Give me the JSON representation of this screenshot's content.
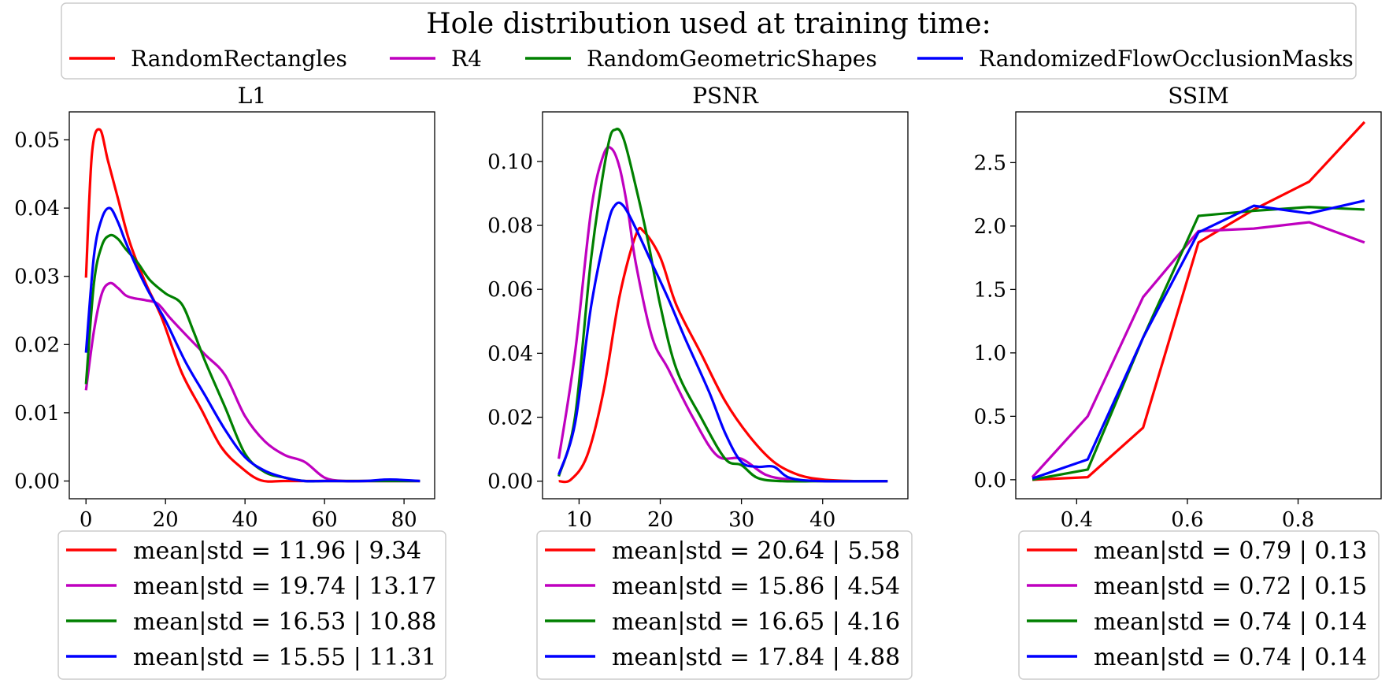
{
  "figure_title": "Hole distribution used at training time:",
  "colors": {
    "RandomRectangles": "#ff0000",
    "R4": "#bf00bf",
    "RandomGeometricShapes": "#008000",
    "RandomizedFlowOcclusionMasks": "#0000ff"
  },
  "top_legend": [
    "RandomRectangles",
    "R4",
    "RandomGeometricShapes",
    "RandomizedFlowOcclusionMasks"
  ],
  "chart_data": [
    {
      "type": "line",
      "title": "L1",
      "xlabel": "",
      "ylabel": "",
      "xlim": [
        -4.2,
        87.7
      ],
      "ylim": [
        -0.0026,
        0.0541
      ],
      "xticks": [
        0,
        20,
        40,
        60,
        80
      ],
      "xtick_labels": [
        "0",
        "20",
        "40",
        "60",
        "80"
      ],
      "yticks": [
        0,
        0.01,
        0.02,
        0.03,
        0.04,
        0.05
      ],
      "ytick_labels": [
        "0.00",
        "0.01",
        "0.02",
        "0.03",
        "0.04",
        "0.05"
      ],
      "smooth": true,
      "series": [
        {
          "name": "RandomRectangles",
          "x": [
            0,
            1.5,
            3.5,
            5.5,
            8,
            11,
            15,
            19,
            24,
            29,
            34,
            39,
            44,
            50,
            60,
            70,
            80,
            84
          ],
          "y": [
            0.0298,
            0.048,
            0.0515,
            0.047,
            0.0415,
            0.035,
            0.029,
            0.024,
            0.016,
            0.0105,
            0.005,
            0.002,
            0.0001,
            0,
            0,
            0,
            0,
            0
          ]
        },
        {
          "name": "R4",
          "x": [
            0,
            2,
            4,
            6,
            8,
            10,
            12,
            15,
            18,
            21,
            25,
            30,
            35,
            40,
            45,
            50,
            55,
            60,
            65,
            70,
            80,
            84
          ],
          "y": [
            0.0133,
            0.022,
            0.0275,
            0.029,
            0.0283,
            0.0272,
            0.0268,
            0.0265,
            0.026,
            0.024,
            0.0215,
            0.0185,
            0.0155,
            0.0095,
            0.0058,
            0.0038,
            0.0028,
            0.0005,
            0,
            0,
            0,
            0
          ]
        },
        {
          "name": "RandomGeometricShapes",
          "x": [
            0,
            2,
            4,
            6,
            8,
            10,
            13,
            16,
            20,
            24,
            27,
            30,
            35,
            40,
            45,
            50,
            55,
            60,
            70,
            84
          ],
          "y": [
            0.0142,
            0.029,
            0.0345,
            0.036,
            0.0355,
            0.034,
            0.032,
            0.0295,
            0.0275,
            0.026,
            0.022,
            0.0175,
            0.0108,
            0.004,
            0.0013,
            0.0005,
            0,
            0,
            0,
            0
          ]
        },
        {
          "name": "RandomizedFlowOcclusionMasks",
          "x": [
            0,
            2,
            4,
            6,
            8,
            10,
            13,
            16,
            20,
            25,
            30,
            35,
            40,
            45,
            50,
            55,
            60,
            70,
            75,
            78,
            84
          ],
          "y": [
            0.0188,
            0.033,
            0.0385,
            0.04,
            0.038,
            0.035,
            0.031,
            0.0275,
            0.0235,
            0.0175,
            0.0125,
            0.0075,
            0.0035,
            0.0015,
            0.0005,
            0,
            0,
            0,
            0.0002,
            0.0002,
            0
          ]
        }
      ],
      "stats_legend": [
        "mean|std = 11.96 | 9.34",
        "mean|std = 19.74 | 13.17",
        "mean|std = 16.53 | 10.88",
        "mean|std = 15.55 | 11.31"
      ]
    },
    {
      "type": "line",
      "title": "PSNR",
      "xlabel": "",
      "ylabel": "",
      "xlim": [
        5.5,
        50.5
      ],
      "ylim": [
        -0.0055,
        0.1155
      ],
      "xticks": [
        10,
        20,
        30,
        40
      ],
      "xtick_labels": [
        "10",
        "20",
        "30",
        "40"
      ],
      "yticks": [
        0,
        0.02,
        0.04,
        0.06,
        0.08,
        0.1
      ],
      "ytick_labels": [
        "0.00",
        "0.02",
        "0.04",
        "0.06",
        "0.08",
        "0.10"
      ],
      "smooth": true,
      "series": [
        {
          "name": "RandomRectangles",
          "x": [
            7.5,
            9,
            11,
            13,
            15,
            17,
            18,
            20,
            22,
            25,
            28,
            31,
            34,
            37,
            40,
            44,
            48
          ],
          "y": [
            0,
            0.0005,
            0.008,
            0.028,
            0.058,
            0.077,
            0.078,
            0.07,
            0.055,
            0.04,
            0.025,
            0.014,
            0.006,
            0.002,
            0.0005,
            0,
            0
          ]
        },
        {
          "name": "R4",
          "x": [
            7.5,
            9.5,
            11.5,
            13,
            14,
            15,
            16,
            17,
            19,
            21,
            24,
            27,
            30,
            33,
            36,
            40,
            48
          ],
          "y": [
            0.007,
            0.04,
            0.085,
            0.102,
            0.104,
            0.098,
            0.085,
            0.068,
            0.045,
            0.035,
            0.02,
            0.008,
            0.007,
            0.002,
            0.0005,
            0,
            0
          ]
        },
        {
          "name": "RandomGeometricShapes",
          "x": [
            7.5,
            9.5,
            11.5,
            13.5,
            14.5,
            15.5,
            17,
            18.5,
            20,
            22,
            25,
            28,
            30,
            32,
            35,
            40,
            48
          ],
          "y": [
            0.0015,
            0.02,
            0.07,
            0.104,
            0.11,
            0.107,
            0.092,
            0.075,
            0.055,
            0.035,
            0.02,
            0.007,
            0.005,
            0.001,
            0,
            0,
            0
          ]
        },
        {
          "name": "RandomizedFlowOcclusionMasks",
          "x": [
            7.5,
            9.5,
            11.5,
            13.5,
            14.5,
            15.5,
            17,
            19,
            21,
            23,
            26,
            28,
            30,
            32,
            34,
            36,
            40,
            48
          ],
          "y": [
            0.002,
            0.018,
            0.055,
            0.08,
            0.0865,
            0.086,
            0.079,
            0.068,
            0.057,
            0.045,
            0.028,
            0.015,
            0.006,
            0.0045,
            0.0045,
            0.001,
            0,
            0
          ]
        }
      ],
      "stats_legend": [
        "mean|std = 20.64 | 5.58",
        "mean|std = 15.86 | 4.54",
        "mean|std = 16.65 | 4.16",
        "mean|std = 17.84 | 4.88"
      ]
    },
    {
      "type": "line",
      "title": "SSIM",
      "xlabel": "",
      "ylabel": "",
      "xlim": [
        0.29,
        0.95
      ],
      "ylim": [
        -0.15,
        2.9
      ],
      "xticks": [
        0.4,
        0.6,
        0.8
      ],
      "xtick_labels": [
        "0.4",
        "0.6",
        "0.8"
      ],
      "yticks": [
        0,
        0.5,
        1.0,
        1.5,
        2.0,
        2.5
      ],
      "ytick_labels": [
        "0.0",
        "0.5",
        "1.0",
        "1.5",
        "2.0",
        "2.5"
      ],
      "smooth": false,
      "series": [
        {
          "name": "RandomRectangles",
          "x": [
            0.32,
            0.42,
            0.52,
            0.62,
            0.72,
            0.82,
            0.92
          ],
          "y": [
            0.0,
            0.02,
            0.41,
            1.87,
            2.13,
            2.35,
            2.82
          ]
        },
        {
          "name": "R4",
          "x": [
            0.32,
            0.42,
            0.52,
            0.62,
            0.72,
            0.82,
            0.92
          ],
          "y": [
            0.02,
            0.5,
            1.44,
            1.96,
            1.98,
            2.03,
            1.87
          ]
        },
        {
          "name": "RandomGeometricShapes",
          "x": [
            0.32,
            0.42,
            0.52,
            0.62,
            0.72,
            0.82,
            0.92
          ],
          "y": [
            0.0,
            0.08,
            1.12,
            2.08,
            2.12,
            2.15,
            2.13
          ]
        },
        {
          "name": "RandomizedFlowOcclusionMasks",
          "x": [
            0.32,
            0.42,
            0.52,
            0.62,
            0.72,
            0.82,
            0.92
          ],
          "y": [
            0.01,
            0.16,
            1.12,
            1.95,
            2.16,
            2.1,
            2.2
          ]
        }
      ],
      "stats_legend": [
        "mean|std = 0.79 | 0.13",
        "mean|std = 0.72 | 0.15",
        "mean|std = 0.74 | 0.14",
        "mean|std = 0.74 | 0.14"
      ]
    }
  ]
}
